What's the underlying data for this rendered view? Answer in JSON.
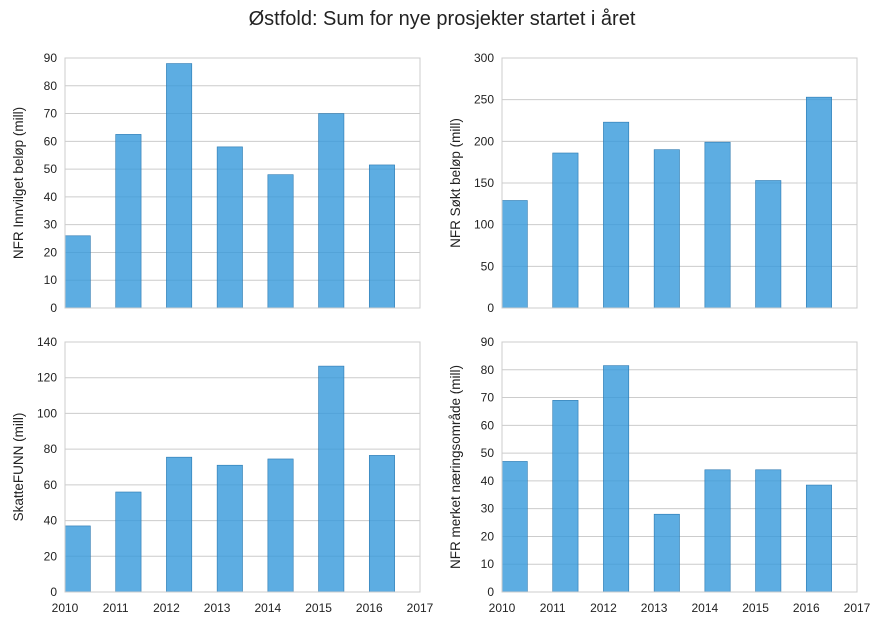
{
  "suptitle": "Østfold: Sum for nye prosjekter startet i året",
  "colors": {
    "bar": "#3498db",
    "grid": "#cccccc",
    "frame": "#cccccc"
  },
  "chart_data": [
    {
      "type": "bar",
      "position": "top-left",
      "ylabel": "NFR Innvilget beløp (mill)",
      "categories": [
        "2010",
        "2011",
        "2012",
        "2013",
        "2014",
        "2015",
        "2016"
      ],
      "values": [
        26,
        62.5,
        88,
        58,
        48,
        70,
        51.5
      ],
      "ylim": [
        0,
        90
      ],
      "yticks": [
        0,
        10,
        20,
        30,
        40,
        50,
        60,
        70,
        80,
        90
      ],
      "xlim": [
        2010,
        2017
      ],
      "show_xticks": false,
      "grid": true
    },
    {
      "type": "bar",
      "position": "top-right",
      "ylabel": "NFR Søkt beløp (mill)",
      "categories": [
        "2010",
        "2011",
        "2012",
        "2013",
        "2014",
        "2015",
        "2016"
      ],
      "values": [
        129,
        186,
        223,
        190,
        199,
        153,
        253
      ],
      "ylim": [
        0,
        300
      ],
      "yticks": [
        0,
        50,
        100,
        150,
        200,
        250,
        300
      ],
      "xlim": [
        2010,
        2017
      ],
      "show_xticks": false,
      "grid": true
    },
    {
      "type": "bar",
      "position": "bottom-left",
      "ylabel": "SkatteFUNN (mill)",
      "categories": [
        "2010",
        "2011",
        "2012",
        "2013",
        "2014",
        "2015",
        "2016"
      ],
      "values": [
        37,
        56,
        75.5,
        71,
        74.5,
        126.5,
        76.5
      ],
      "ylim": [
        0,
        140
      ],
      "yticks": [
        0,
        20,
        40,
        60,
        80,
        100,
        120,
        140
      ],
      "xlim": [
        2010,
        2017
      ],
      "xticks": [
        "2010",
        "2011",
        "2012",
        "2013",
        "2014",
        "2015",
        "2016",
        "2017"
      ],
      "show_xticks": true,
      "grid": true
    },
    {
      "type": "bar",
      "position": "bottom-right",
      "ylabel": "NFR merket næringsområde (mill)",
      "categories": [
        "2010",
        "2011",
        "2012",
        "2013",
        "2014",
        "2015",
        "2016"
      ],
      "values": [
        47,
        69,
        81.5,
        28,
        44,
        44,
        38.5
      ],
      "ylim": [
        0,
        90
      ],
      "yticks": [
        0,
        10,
        20,
        30,
        40,
        50,
        60,
        70,
        80,
        90
      ],
      "xlim": [
        2010,
        2017
      ],
      "xticks": [
        "2010",
        "2011",
        "2012",
        "2013",
        "2014",
        "2015",
        "2016",
        "2017"
      ],
      "show_xticks": true,
      "grid": true
    }
  ]
}
